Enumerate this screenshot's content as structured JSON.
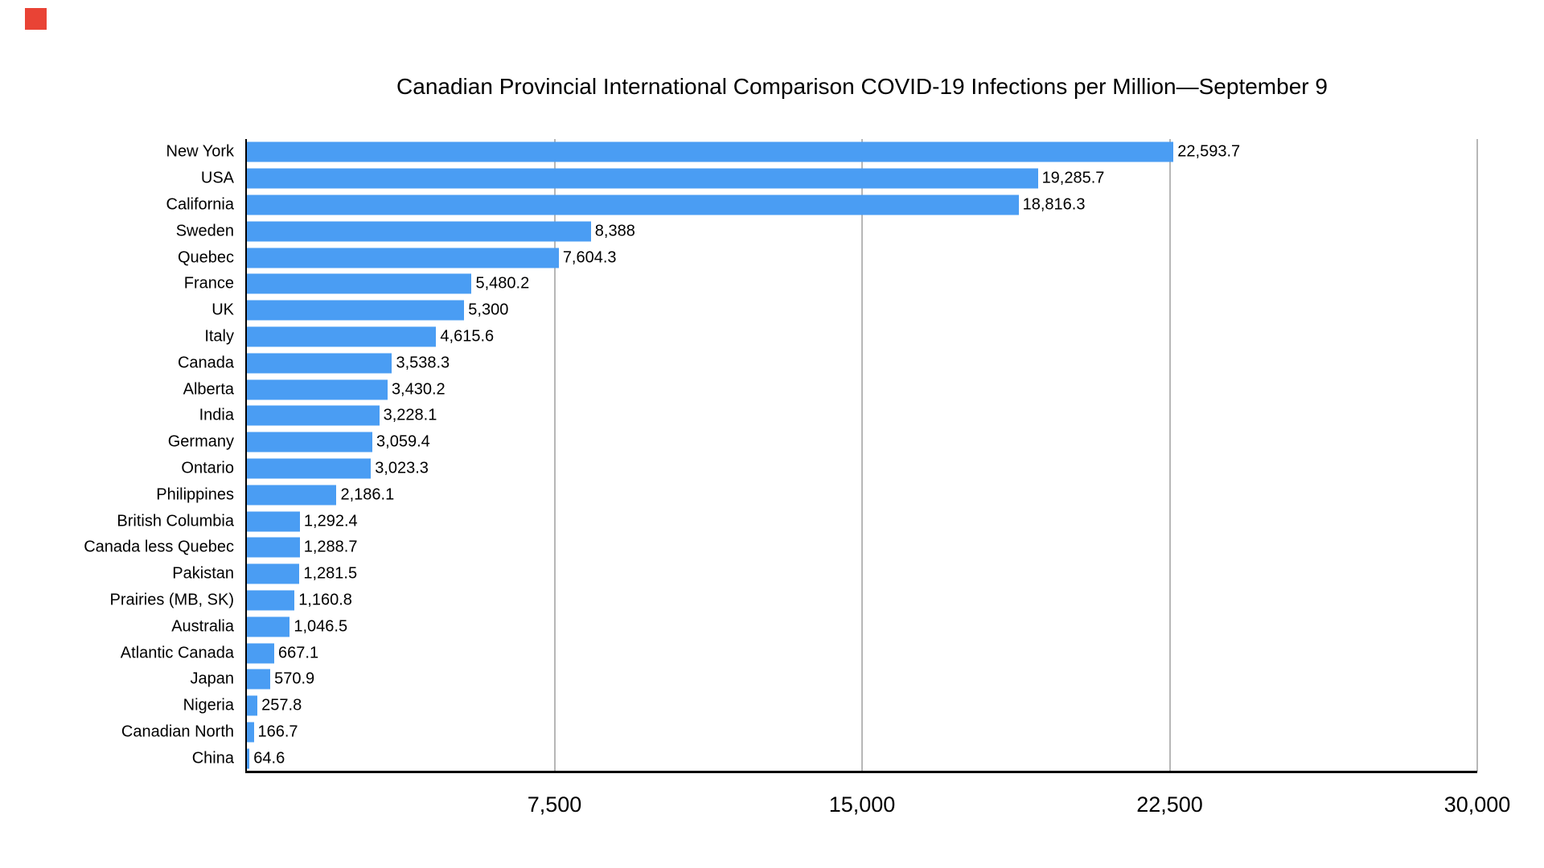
{
  "page": {
    "background": "#ffffff"
  },
  "red_marker": {
    "color": "#e94335"
  },
  "chart_data": {
    "type": "bar",
    "orientation": "horizontal",
    "title": "Canadian Provincial International Comparison COVID-19 Infections per Million—September 9",
    "categories": [
      "New York",
      "USA",
      "California",
      "Sweden",
      "Quebec",
      "France",
      "UK",
      "Italy",
      "Canada",
      "Alberta",
      "India",
      "Germany",
      "Ontario",
      "Philippines",
      "British Columbia",
      "Canada less Quebec",
      "Pakistan",
      "Prairies (MB, SK)",
      "Australia",
      "Atlantic Canada",
      "Japan",
      "Nigeria",
      "Canadian North",
      "China"
    ],
    "values": [
      22593.7,
      19285.7,
      18816.3,
      8388,
      7604.3,
      5480.2,
      5300,
      4615.6,
      3538.3,
      3430.2,
      3228.1,
      3059.4,
      3023.3,
      2186.1,
      1292.4,
      1288.7,
      1281.5,
      1160.8,
      1046.5,
      667.1,
      570.9,
      257.8,
      166.7,
      64.6
    ],
    "value_labels": [
      "22,593.7",
      "19,285.7",
      "18,816.3",
      "8,388",
      "7,604.3",
      "5,480.2",
      "5,300",
      "4,615.6",
      "3,538.3",
      "3,430.2",
      "3,228.1",
      "3,059.4",
      "3,023.3",
      "2,186.1",
      "1,292.4",
      "1,288.7",
      "1,281.5",
      "1,160.8",
      "1,046.5",
      "667.1",
      "570.9",
      "257.8",
      "166.7",
      "64.6"
    ],
    "xlabel": "",
    "ylabel": "",
    "xlim": [
      0,
      30000
    ],
    "x_ticks": [
      7500,
      15000,
      22500,
      30000
    ],
    "x_tick_labels": [
      "7,500",
      "15,000",
      "22,500",
      "30,000"
    ],
    "bar_color": "#4a9df3",
    "gridline_color": "#b7b7b7",
    "axis_color": "#000000",
    "grid": "vertical-on",
    "legend": "none"
  }
}
